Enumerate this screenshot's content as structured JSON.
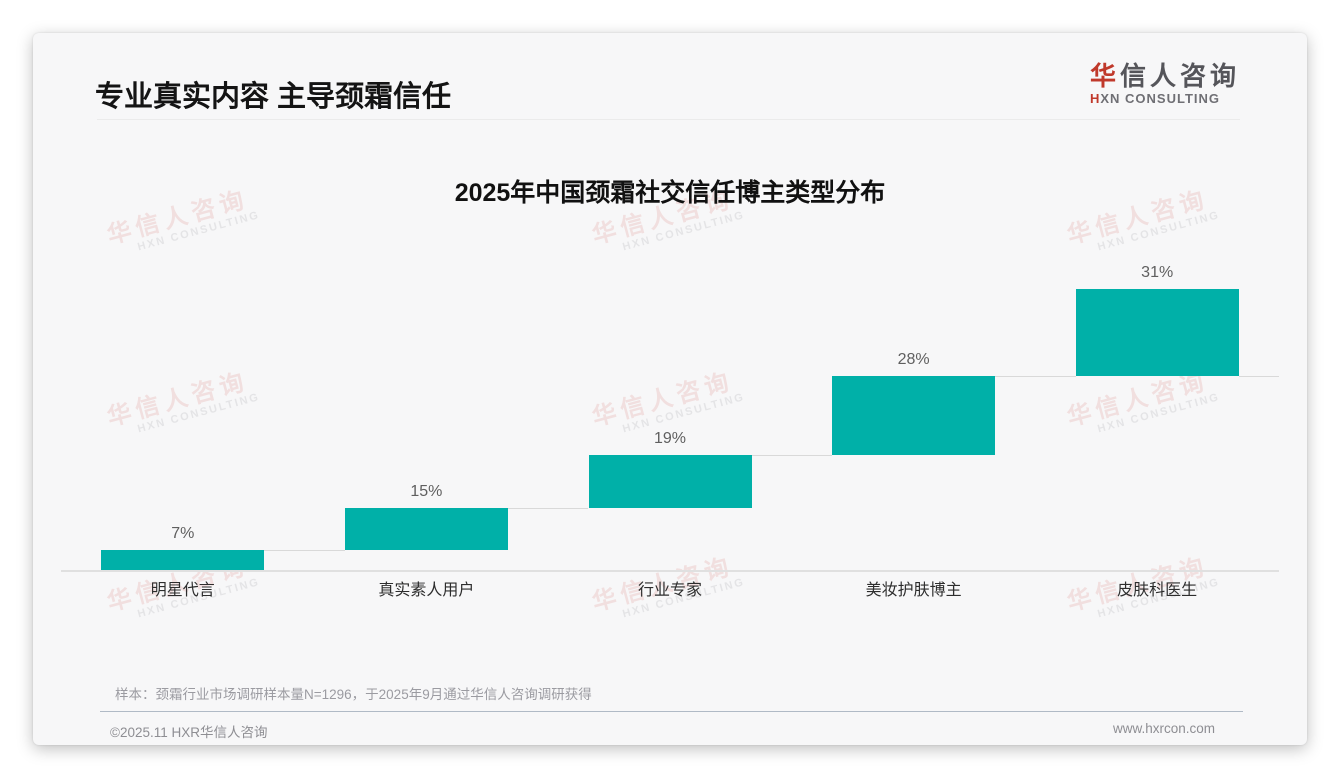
{
  "header": {
    "title": "专业真实内容 主导颈霜信任",
    "logo_cn_first": "华",
    "logo_cn_rest": "信人咨询",
    "logo_en_first": "H",
    "logo_en_rest": "XN CONSULTING"
  },
  "watermark": {
    "cn": "华信人咨询",
    "en": "HXN CONSULTING"
  },
  "chart_data": {
    "type": "bar",
    "subtype": "waterfall-staircase",
    "title": "2025年中国颈霜社交信任博主类型分布",
    "categories": [
      "明星代言",
      "真实素人用户",
      "行业专家",
      "美妆护肤博主",
      "皮肤科医生"
    ],
    "values": [
      7,
      15,
      19,
      28,
      31
    ],
    "data_labels": [
      "7%",
      "15%",
      "19%",
      "28%",
      "31%"
    ],
    "unit": "%",
    "cumulative_total": 100,
    "ylim": [
      0,
      100
    ],
    "grid": false,
    "legend": "none",
    "bar_color": "#00b0a8",
    "note": "each bar starts at the cumulative top of the previous bar; thin gray step connectors between bars"
  },
  "footnote": {
    "text": "样本：颈霜行业市场调研样本量N=1296，于2025年9月通过华信人咨询调研获得"
  },
  "footer": {
    "left": "©2025.11 HXR华信人咨询",
    "right": "www.hxrcon.com"
  },
  "colors": {
    "accent_red": "#c0392b",
    "bar_teal": "#00b0a8",
    "card_bg": "#f7f7f8"
  }
}
